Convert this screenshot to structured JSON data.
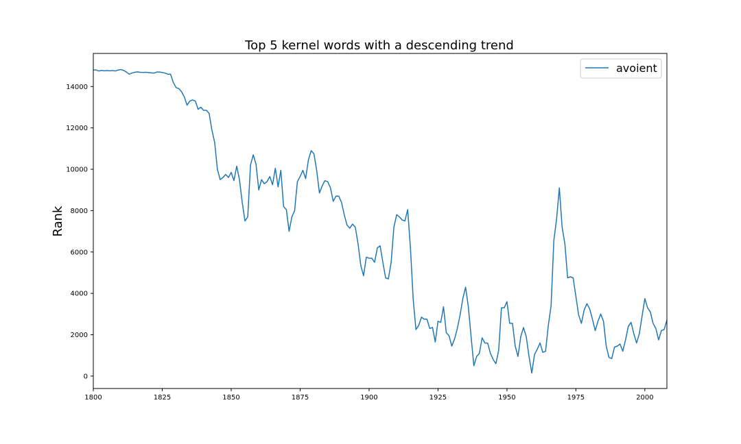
{
  "chart_data": {
    "type": "line",
    "title": "Top 5 kernel words with a descending trend",
    "xlabel": "",
    "ylabel": "Rank",
    "xlim": [
      1800,
      2008
    ],
    "ylim": [
      -600,
      15600
    ],
    "x_ticks": [
      1800,
      1825,
      1850,
      1875,
      1900,
      1925,
      1950,
      1975,
      2000
    ],
    "y_ticks": [
      0,
      2000,
      4000,
      6000,
      8000,
      10000,
      12000,
      14000
    ],
    "x_tick_labels": [
      "1800",
      "1825",
      "1850",
      "1875",
      "1900",
      "1925",
      "1950",
      "1975",
      "2000"
    ],
    "y_tick_labels": [
      "0",
      "2000",
      "4000",
      "6000",
      "8000",
      "10000",
      "12000",
      "14000"
    ],
    "grid": false,
    "legend_position": "top-right",
    "colors": {
      "series": "#1f77b4",
      "axes": "#000000",
      "background": "#ffffff"
    },
    "series": [
      {
        "name": "avoient",
        "x": [
          1800,
          1801,
          1802,
          1803,
          1804,
          1805,
          1806,
          1807,
          1808,
          1809,
          1810,
          1811,
          1812,
          1813,
          1814,
          1815,
          1816,
          1817,
          1818,
          1819,
          1820,
          1821,
          1822,
          1823,
          1824,
          1825,
          1826,
          1827,
          1828,
          1829,
          1830,
          1831,
          1832,
          1833,
          1834,
          1835,
          1836,
          1837,
          1838,
          1839,
          1840,
          1841,
          1842,
          1843,
          1844,
          1845,
          1846,
          1847,
          1848,
          1849,
          1850,
          1851,
          1852,
          1853,
          1854,
          1855,
          1856,
          1857,
          1858,
          1859,
          1860,
          1861,
          1862,
          1863,
          1864,
          1865,
          1866,
          1867,
          1868,
          1869,
          1870,
          1871,
          1872,
          1873,
          1874,
          1875,
          1876,
          1877,
          1878,
          1879,
          1880,
          1881,
          1882,
          1883,
          1884,
          1885,
          1886,
          1887,
          1888,
          1889,
          1890,
          1891,
          1892,
          1893,
          1894,
          1895,
          1896,
          1897,
          1898,
          1899,
          1900,
          1901,
          1902,
          1903,
          1904,
          1905,
          1906,
          1907,
          1908,
          1909,
          1910,
          1911,
          1912,
          1913,
          1914,
          1915,
          1916,
          1917,
          1918,
          1919,
          1920,
          1921,
          1922,
          1923,
          1924,
          1925,
          1926,
          1927,
          1928,
          1929,
          1930,
          1931,
          1932,
          1933,
          1934,
          1935,
          1936,
          1937,
          1938,
          1939,
          1940,
          1941,
          1942,
          1943,
          1944,
          1945,
          1946,
          1947,
          1948,
          1949,
          1950,
          1951,
          1952,
          1953,
          1954,
          1955,
          1956,
          1957,
          1958,
          1959,
          1960,
          1961,
          1962,
          1963,
          1964,
          1965,
          1966,
          1967,
          1968,
          1969,
          1970,
          1971,
          1972,
          1973,
          1974,
          1975,
          1976,
          1977,
          1978,
          1979,
          1980,
          1981,
          1982,
          1983,
          1984,
          1985,
          1986,
          1987,
          1988,
          1989,
          1990,
          1991,
          1992,
          1993,
          1994,
          1995,
          1996,
          1997,
          1998,
          1999,
          2000,
          2001,
          2002,
          2003,
          2004,
          2005,
          2006,
          2007,
          2008
        ],
        "values": [
          14800,
          14800,
          14750,
          14780,
          14760,
          14770,
          14760,
          14770,
          14750,
          14800,
          14820,
          14780,
          14700,
          14600,
          14650,
          14690,
          14710,
          14690,
          14680,
          14690,
          14680,
          14660,
          14650,
          14700,
          14700,
          14680,
          14650,
          14600,
          14600,
          14200,
          13950,
          13900,
          13750,
          13500,
          13100,
          13300,
          13350,
          13300,
          12900,
          13000,
          12850,
          12850,
          12700,
          11900,
          11300,
          10000,
          9500,
          9600,
          9750,
          9600,
          9850,
          9450,
          10150,
          9500,
          8400,
          7500,
          7700,
          10200,
          10700,
          10250,
          9000,
          9500,
          9300,
          9400,
          9650,
          9250,
          10050,
          9150,
          9950,
          8200,
          8050,
          7000,
          7700,
          8000,
          9400,
          9650,
          9950,
          9550,
          10450,
          10900,
          10750,
          9950,
          8850,
          9200,
          9450,
          9400,
          9100,
          8450,
          8700,
          8700,
          8400,
          7800,
          7300,
          7150,
          7350,
          7200,
          6400,
          5350,
          4850,
          5750,
          5700,
          5700,
          5500,
          6200,
          6300,
          5500,
          4750,
          4700,
          5500,
          7200,
          7800,
          7700,
          7550,
          7500,
          8050,
          6200,
          3700,
          2250,
          2450,
          2850,
          2750,
          2750,
          2300,
          2350,
          1650,
          2650,
          2600,
          3350,
          2100,
          1950,
          1450,
          1800,
          2300,
          2950,
          3750,
          4300,
          3350,
          1900,
          500,
          950,
          1100,
          1850,
          1600,
          1600,
          1100,
          800,
          600,
          1250,
          3300,
          3300,
          3600,
          2550,
          2550,
          1450,
          950,
          1900,
          2350,
          1900,
          950,
          150,
          1050,
          1300,
          1600,
          1150,
          1200,
          2450,
          3400,
          6550,
          7600,
          9100,
          7200,
          6400,
          4750,
          4800,
          4750,
          3850,
          2950,
          2550,
          3200,
          3500,
          3250,
          2750,
          2200,
          2650,
          3000,
          2650,
          1450,
          900,
          850,
          1400,
          1450,
          1550,
          1200,
          1750,
          2400,
          2600,
          2050,
          1600,
          2050,
          2900,
          3750,
          3300,
          3100,
          2550,
          2300,
          1750,
          2200,
          2250,
          2700
        ]
      }
    ]
  }
}
